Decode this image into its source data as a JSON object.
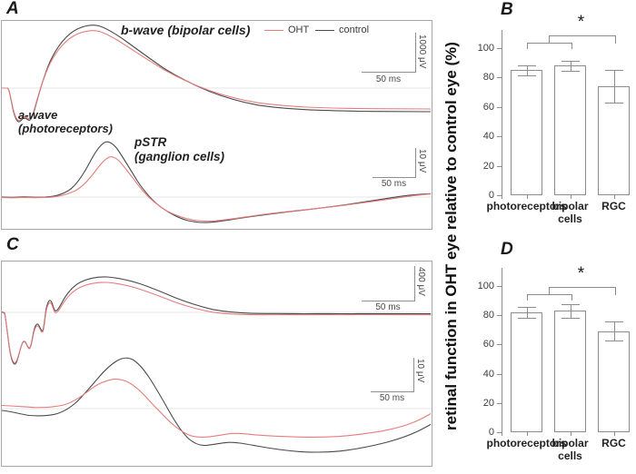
{
  "figure": {
    "panel_labels": {
      "a": "A",
      "b": "B",
      "c": "C",
      "d": "D"
    }
  },
  "colors": {
    "oht_trace": "#e57d7d",
    "control_trace": "#4a4a4a",
    "chart_gray": "#8c8c8c"
  },
  "y_axis_label": "retinal function in OHT eye relative to control eye (%)",
  "panel_a": {
    "b_wave_label": "b-wave (bipolar cells)",
    "a_wave_label": "a-wave",
    "a_wave_sublabel": "(photoreceptors)",
    "pstr_label": "pSTR",
    "pstr_sublabel": "(ganglion cells)",
    "legend": {
      "oht": "OHT",
      "control": "control"
    },
    "scalebar_top": {
      "v": "1000 μV",
      "h": "50 ms"
    },
    "scalebar_bottom": {
      "v": "10 μV",
      "h": "50 ms"
    }
  },
  "panel_c": {
    "scalebar_top": {
      "v": "400 μV",
      "h": "50 ms"
    },
    "scalebar_bottom": {
      "v": "10 μV",
      "h": "50 ms"
    }
  },
  "chart_data": [
    {
      "id": "A",
      "type": "line",
      "description": "ERG waveforms, OHT (red) vs control (black); upper trace shows a-wave trough then large b-wave peak, lower trace shows pSTR peak",
      "series": [
        {
          "name": "OHT",
          "color": "#e57d7d"
        },
        {
          "name": "control",
          "color": "#4a4a4a"
        }
      ],
      "annotations": [
        "b-wave (bipolar cells)",
        "a-wave (photoreceptors)",
        "pSTR (ganglion cells)"
      ],
      "scalebars": [
        "1000 μV / 50 ms",
        "10 μV / 50 ms"
      ]
    },
    {
      "id": "B",
      "type": "bar",
      "categories": [
        "photoreceptors",
        "bipolar cells",
        "RGC"
      ],
      "category_lines": [
        [
          "photoreceptors"
        ],
        [
          "bipolar",
          "cells"
        ],
        [
          "RGC"
        ]
      ],
      "values": [
        85,
        88,
        74
      ],
      "errors": [
        3.5,
        3.5,
        11
      ],
      "ylim": [
        0,
        100
      ],
      "yticks": [
        0,
        20,
        40,
        60,
        80,
        100
      ],
      "ylabel": "retinal function in OHT eye relative to control eye (%)",
      "significance": "*",
      "significance_compares": "photoreceptors+bipolar cells vs RGC"
    },
    {
      "id": "C",
      "type": "line",
      "description": "ERG waveforms with oscillatory potentials, OHT (red) vs control (black); upper trace with deep trough and oscillations then b-wave, lower trace pSTR",
      "series": [
        {
          "name": "OHT",
          "color": "#e57d7d"
        },
        {
          "name": "control",
          "color": "#4a4a4a"
        }
      ],
      "scalebars": [
        "400 μV / 50 ms",
        "10 μV / 50 ms"
      ]
    },
    {
      "id": "D",
      "type": "bar",
      "categories": [
        "photoreceptors",
        "bipolar cells",
        "RGC"
      ],
      "category_lines": [
        [
          "photoreceptors"
        ],
        [
          "bipolar",
          "cells"
        ],
        [
          "RGC"
        ]
      ],
      "values": [
        82,
        83,
        69
      ],
      "errors": [
        4,
        4.5,
        6.5
      ],
      "ylim": [
        0,
        100
      ],
      "yticks": [
        0,
        20,
        40,
        60,
        80,
        100
      ],
      "ylabel": "retinal function in OHT eye relative to control eye (%)",
      "significance": "*",
      "significance_compares": "photoreceptors+bipolar cells vs RGC"
    }
  ]
}
